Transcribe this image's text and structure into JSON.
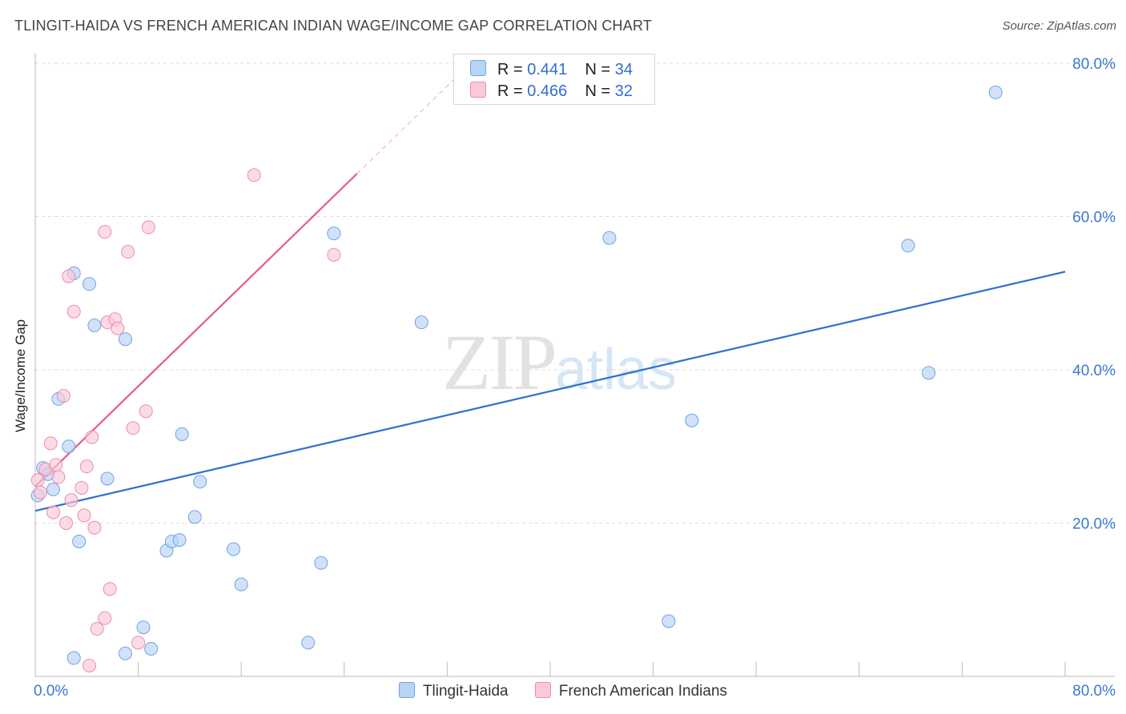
{
  "header": {
    "title": "TLINGIT-HAIDA VS FRENCH AMERICAN INDIAN WAGE/INCOME GAP CORRELATION CHART",
    "source": "Source: ZipAtlas.com"
  },
  "watermark": {
    "zip": "ZIP",
    "atlas": "atlas"
  },
  "legend": {
    "rows": [
      {
        "r_label": "R =",
        "r_value": "0.441",
        "n_label": "N =",
        "n_value": "34"
      },
      {
        "r_label": "R =",
        "r_value": "0.466",
        "n_label": "N =",
        "n_value": "32"
      }
    ]
  },
  "chart_data": {
    "type": "scatter",
    "title": "TLINGIT-HAIDA VS FRENCH AMERICAN INDIAN WAGE/INCOME GAP CORRELATION CHART",
    "xlabel": "",
    "ylabel": "Wage/Income Gap",
    "xlim": [
      0,
      80
    ],
    "ylim": [
      0,
      80
    ],
    "x_tick_labels": [
      "0.0%",
      "80.0%"
    ],
    "y_ticks": [
      20,
      40,
      60,
      80
    ],
    "y_tick_labels": [
      "20.0%",
      "40.0%",
      "60.0%",
      "80.0%"
    ],
    "grid": true,
    "series": [
      {
        "name": "Tlingit-Haida",
        "color": "#6fa3e6",
        "fill": "#b9d3f4",
        "line_color": "#2c70cf",
        "trend": {
          "x": [
            0,
            80
          ],
          "y": [
            21.6,
            52.8
          ]
        },
        "points": [
          [
            0.2,
            23.6
          ],
          [
            0.6,
            27.2
          ],
          [
            1.0,
            26.4
          ],
          [
            1.4,
            24.4
          ],
          [
            1.8,
            36.2
          ],
          [
            2.6,
            30.0
          ],
          [
            3.0,
            2.4
          ],
          [
            3.4,
            17.6
          ],
          [
            3.0,
            52.6
          ],
          [
            4.2,
            51.2
          ],
          [
            4.6,
            45.8
          ],
          [
            5.6,
            25.8
          ],
          [
            7.0,
            44.0
          ],
          [
            7.0,
            3.0
          ],
          [
            8.4,
            6.4
          ],
          [
            9.0,
            3.6
          ],
          [
            10.2,
            16.4
          ],
          [
            10.6,
            17.6
          ],
          [
            11.2,
            17.8
          ],
          [
            11.4,
            31.6
          ],
          [
            12.4,
            20.8
          ],
          [
            12.8,
            25.4
          ],
          [
            15.4,
            16.6
          ],
          [
            16.0,
            12.0
          ],
          [
            21.2,
            4.4
          ],
          [
            22.2,
            14.8
          ],
          [
            23.2,
            57.8
          ],
          [
            30.0,
            46.2
          ],
          [
            44.6,
            57.2
          ],
          [
            49.2,
            7.2
          ],
          [
            51.0,
            33.4
          ],
          [
            67.8,
            56.2
          ],
          [
            69.4,
            39.6
          ],
          [
            74.6,
            76.2
          ]
        ]
      },
      {
        "name": "French American Indians",
        "color": "#f08aaa",
        "fill": "#f9c9d8",
        "line_color": "#e55a8a",
        "trend": {
          "x": [
            0,
            25
          ],
          "y": [
            24.8,
            65.6
          ],
          "dashed_to": {
            "x": [
              25,
              34.8
            ],
            "y": [
              65.6,
              81.6
            ]
          }
        },
        "points": [
          [
            0.2,
            25.6
          ],
          [
            0.4,
            24.0
          ],
          [
            0.8,
            27.0
          ],
          [
            1.2,
            30.4
          ],
          [
            1.4,
            21.4
          ],
          [
            1.6,
            27.6
          ],
          [
            1.8,
            26.0
          ],
          [
            2.2,
            36.6
          ],
          [
            2.4,
            20.0
          ],
          [
            2.6,
            52.2
          ],
          [
            2.8,
            23.0
          ],
          [
            3.0,
            47.6
          ],
          [
            3.6,
            24.6
          ],
          [
            3.8,
            21.0
          ],
          [
            4.0,
            27.4
          ],
          [
            4.2,
            1.4
          ],
          [
            4.4,
            31.2
          ],
          [
            4.6,
            19.4
          ],
          [
            4.8,
            6.2
          ],
          [
            5.4,
            7.6
          ],
          [
            5.4,
            58.0
          ],
          [
            5.6,
            46.2
          ],
          [
            5.8,
            11.4
          ],
          [
            6.2,
            46.6
          ],
          [
            6.4,
            45.4
          ],
          [
            7.2,
            55.4
          ],
          [
            7.6,
            32.4
          ],
          [
            8.0,
            4.4
          ],
          [
            8.6,
            34.6
          ],
          [
            8.8,
            58.6
          ],
          [
            17.0,
            65.4
          ],
          [
            23.2,
            55.0
          ]
        ]
      }
    ]
  }
}
